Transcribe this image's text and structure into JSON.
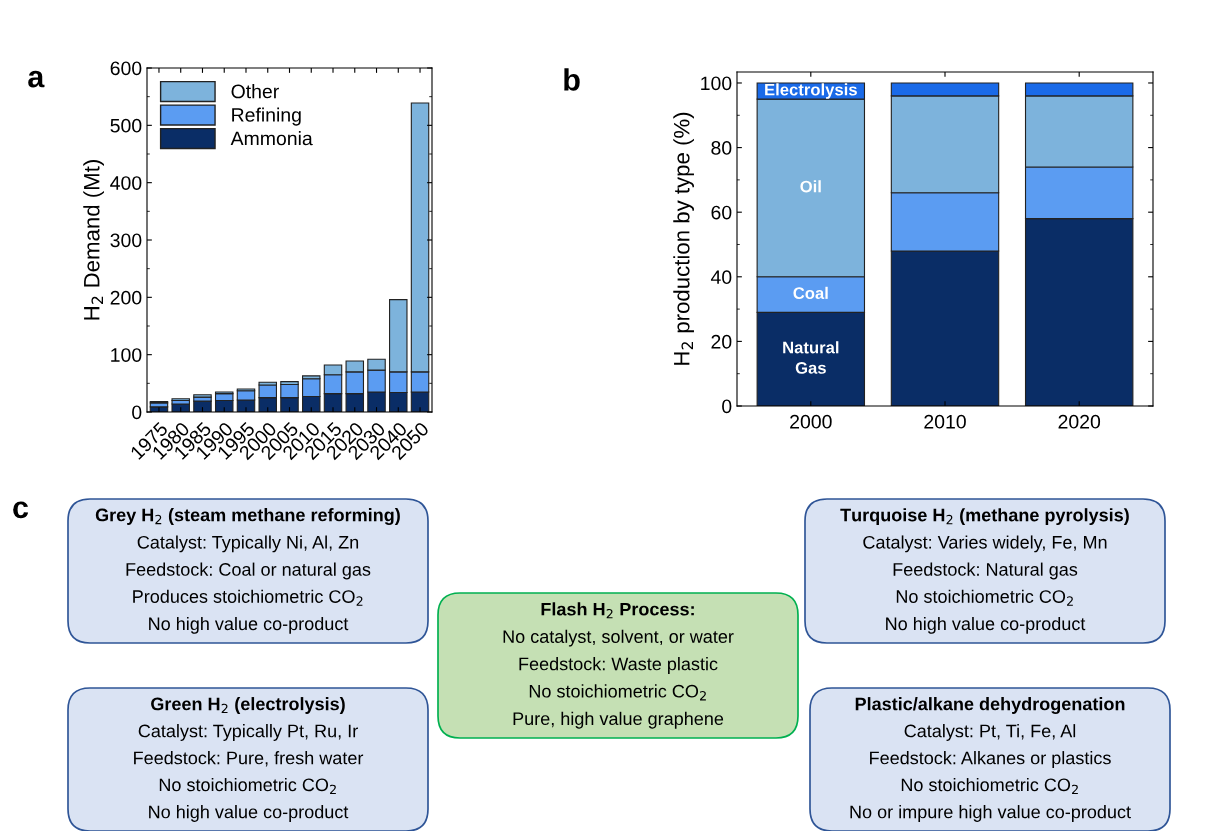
{
  "chart_data": [
    {
      "type": "bar",
      "title": "a",
      "stacked": true,
      "ylabel": "H$_{2}$ Demand (Mt)",
      "categories": [
        "1975",
        "1980",
        "1985",
        "1990",
        "1995",
        "2000",
        "2005",
        "2010",
        "2015",
        "2020",
        "2030",
        "2040",
        "2050"
      ],
      "series": [
        {
          "name": "Ammonia",
          "color": "#0a2d66",
          "values": [
            9,
            14,
            19,
            20,
            21,
            25,
            25,
            27,
            32,
            32,
            35,
            34,
            35
          ]
        },
        {
          "name": "Refining",
          "color": "#5b9cf2",
          "values": [
            7,
            6,
            7,
            12,
            16,
            22,
            23,
            31,
            33,
            38,
            38,
            36,
            35
          ]
        },
        {
          "name": "Other",
          "color": "#7db3dc",
          "values": [
            2,
            3,
            4,
            3,
            3,
            5,
            5,
            5,
            17,
            19,
            19,
            126,
            469
          ]
        }
      ],
      "ylim": [
        0,
        600
      ],
      "yticks": [
        0,
        100,
        200,
        300,
        400,
        500,
        600
      ],
      "legend": "top left",
      "grid": false
    },
    {
      "type": "bar",
      "title": "b",
      "stacked": true,
      "ylabel": "H$_{2}$ production by type (%)",
      "categories": [
        "2000",
        "2010",
        "2020"
      ],
      "series": [
        {
          "name": "Natural Gas",
          "color": "#0a2d66",
          "values": [
            29,
            48,
            58
          ]
        },
        {
          "name": "Coal",
          "color": "#5b9cf2",
          "values": [
            11,
            18,
            16
          ]
        },
        {
          "name": "Oil",
          "color": "#7db3dc",
          "values": [
            55,
            30,
            22
          ]
        },
        {
          "name": "Electrolysis",
          "color": "#1a6ae8",
          "values": [
            5,
            4,
            4
          ]
        }
      ],
      "ylim": [
        0,
        103.4
      ],
      "yticks": [
        0,
        20,
        40,
        60,
        80,
        100
      ],
      "legend": false,
      "grid": false
    },
    {
      "type": "other",
      "title": "c",
      "colors": [
        "#dae3f3",
        "#c5e0b4",
        "#dae3f3",
        "#dae3f3",
        "#dae3f3"
      ],
      "annotations": [
        "Grey H$_{2}$ (steam methane reforming)\nCatalyst: Typically Ni, Al, Zn\nFeedstock: Coal or natural gas\nProduces stoichiometric CO$_{2}$\nNo high value co-product",
        "Flash H$_{2}$ Process:\nNo catalyst, solvent, or water\nFeedstock: Waste plastic\nNo stoichiometric CO$_{2}$\nPure, high value graphene",
        "Turquoise H$_{2}$ (methane pyrolysis)\nCatalyst: Varies widely, Fe, Mn\nFeedstock: Natural gas\nNo stoichiometric CO$_{2}$\nNo high value co-product",
        "Green H$_{2}$ (electrolysis)\nCatalyst: Typically Pt, Ru, Ir\nFeedstock: Pure, fresh water\nNo stoichiometric CO$_{2}$\nNo high value co-product",
        "Plastic/alkane dehydrogenation\nCatalyst: Pt, Ti, Fe, Al\nFeedstock: Alkanes or plastics\nNo stoichiometric CO$_{2}$\nNo or impure high value co-product"
      ]
    }
  ]
}
